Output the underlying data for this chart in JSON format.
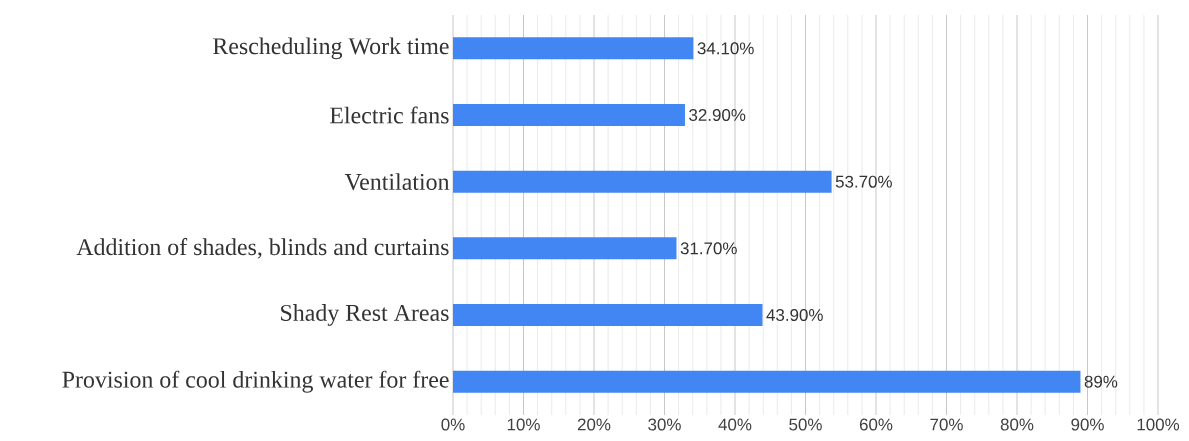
{
  "chart_data": {
    "type": "bar",
    "orientation": "horizontal",
    "categories": [
      "Rescheduling Work time",
      "Electric fans",
      "Ventilation",
      "Addition of shades, blinds and curtains",
      "Shady Rest Areas",
      "Provision of cool drinking water for free"
    ],
    "values": [
      34.1,
      32.9,
      53.7,
      31.7,
      43.9,
      89
    ],
    "value_labels": [
      "34.10%",
      "32.90%",
      "53.70%",
      "31.70%",
      "43.90%",
      "89%"
    ],
    "color": "#4286f4",
    "xlim": [
      0,
      100
    ],
    "xticks": [
      {
        "value": 0,
        "label": "0%"
      },
      {
        "value": 10,
        "label": "10%"
      },
      {
        "value": 20,
        "label": "20%"
      },
      {
        "value": 30,
        "label": "30%"
      },
      {
        "value": 40,
        "label": "40%"
      },
      {
        "value": 50,
        "label": "50%"
      },
      {
        "value": 60,
        "label": "60%"
      },
      {
        "value": 70,
        "label": "70%"
      },
      {
        "value": 80,
        "label": "80%"
      },
      {
        "value": 90,
        "label": "90%"
      },
      {
        "value": 100,
        "label": "100%"
      }
    ],
    "grid": "x"
  }
}
